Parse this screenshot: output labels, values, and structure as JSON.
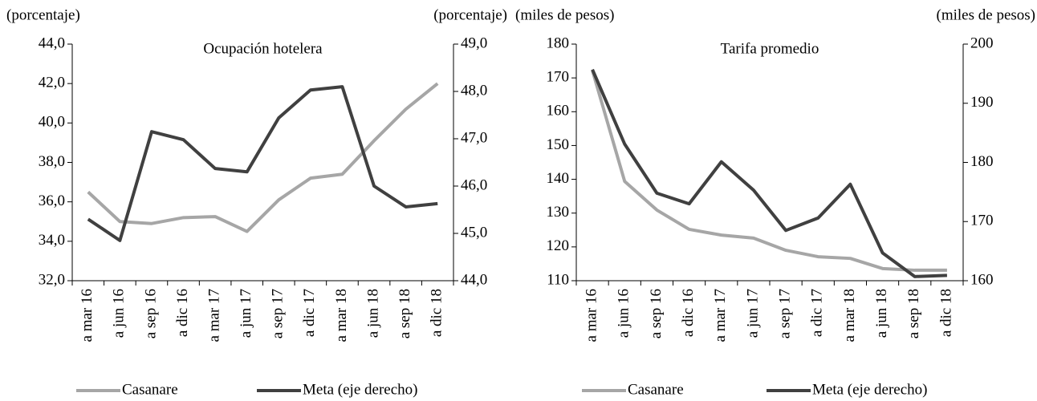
{
  "chart_data": [
    {
      "type": "line",
      "title": "Ocupación hotelera",
      "y_label": "(porcentaje)",
      "y2_label": "(porcentaje)",
      "categories": [
        "a mar 16",
        "a jun 16",
        "a sep 16",
        "a dic 16",
        "a mar 17",
        "a jun 17",
        "a sep 17",
        "a dic 17",
        "a mar 18",
        "a jun 18",
        "a sep 18",
        "a dic 18"
      ],
      "series": [
        {
          "name": "Casanare",
          "color": "#a6a6a6",
          "values": [
            36.5,
            35.0,
            34.9,
            35.2,
            35.25,
            34.5,
            36.1,
            37.2,
            37.4,
            39.1,
            40.7,
            42.0
          ]
        },
        {
          "name": "Meta (eje derecho)",
          "color": "#404040",
          "axis": "y2",
          "values": [
            45.3,
            44.85,
            47.15,
            46.98,
            46.37,
            46.3,
            47.44,
            48.03,
            48.1,
            46.0,
            45.56,
            45.63
          ]
        }
      ],
      "ylim": [
        32,
        44
      ],
      "yticks": [
        {
          "value": 32,
          "label": "32,0"
        },
        {
          "value": 34,
          "label": "34,0"
        },
        {
          "value": 36,
          "label": "36,0"
        },
        {
          "value": 38,
          "label": "38,0"
        },
        {
          "value": 40,
          "label": "40,0"
        },
        {
          "value": 42,
          "label": "42,0"
        },
        {
          "value": 44,
          "label": "44,0"
        }
      ],
      "y2lim": [
        44,
        49
      ],
      "y2ticks": [
        {
          "value": 44,
          "label": "44,0"
        },
        {
          "value": 45,
          "label": "45,0"
        },
        {
          "value": 46,
          "label": "46,0"
        },
        {
          "value": 47,
          "label": "47,0"
        },
        {
          "value": 48,
          "label": "48,0"
        },
        {
          "value": 49,
          "label": "49,0"
        }
      ]
    },
    {
      "type": "line",
      "title": "Tarifa promedio",
      "y_label": "(miles de pesos)",
      "y2_label": "(miles de pesos)",
      "categories": [
        "a mar 16",
        "a jun 16",
        "a sep 16",
        "a dic 16",
        "a mar 17",
        "a jun 17",
        "a sep 17",
        "a dic 17",
        "a mar 18",
        "a jun 18",
        "a sep 18",
        "a dic 18"
      ],
      "series": [
        {
          "name": "Casanare",
          "color": "#a6a6a6",
          "values": [
            172.2,
            139.4,
            130.9,
            125.2,
            123.5,
            122.6,
            119.0,
            117.1,
            116.6,
            113.6,
            113.1,
            113.1
          ]
        },
        {
          "name": "Meta (eje derecho)",
          "color": "#404040",
          "axis": "y2",
          "values": [
            195.7,
            183.1,
            174.8,
            173.0,
            180.1,
            175.3,
            168.5,
            170.6,
            176.3,
            164.7,
            160.7,
            160.9
          ]
        }
      ],
      "ylim": [
        110,
        180
      ],
      "yticks": [
        110,
        120,
        130,
        140,
        150,
        160,
        170,
        180
      ],
      "y2lim": [
        160,
        200
      ],
      "y2ticks": [
        160,
        170,
        180,
        190,
        200
      ]
    }
  ]
}
